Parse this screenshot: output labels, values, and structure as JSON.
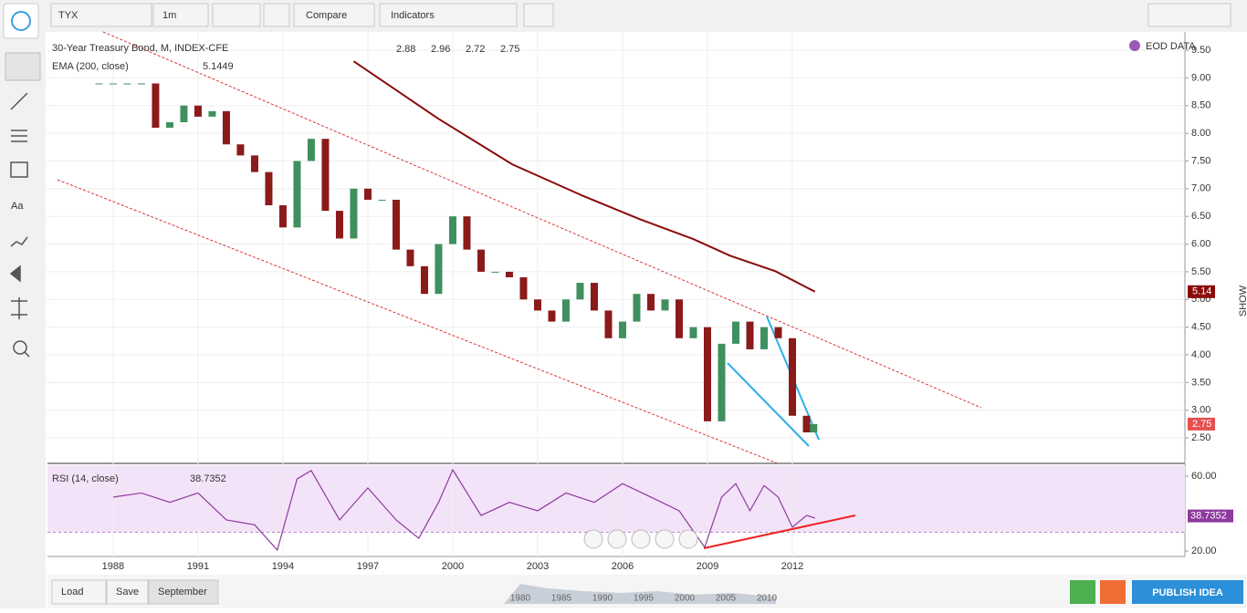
{
  "toolbar": {
    "symbol": "TYX",
    "interval": "1m",
    "compare": "Compare",
    "indicators": "Indicators"
  },
  "eod": "EOD DATA",
  "show": "SHOW",
  "chart_data": [
    {
      "type": "candlestick",
      "title": "30-Year Treasury Bond, M, INDEX-CFE",
      "ohlc": [
        2.88,
        2.96,
        2.72,
        2.75
      ],
      "color_up": "#3f8f5f",
      "color_down": "#8b1a1a",
      "x": [
        1987.5,
        1988,
        1988.5,
        1989,
        1989.5,
        1990,
        1990.5,
        1991,
        1991.5,
        1992,
        1992.5,
        1993,
        1993.5,
        1994,
        1994.5,
        1995,
        1995.5,
        1996,
        1996.5,
        1997,
        1997.5,
        1998,
        1998.5,
        1999,
        1999.5,
        2000,
        2000.5,
        2001,
        2001.5,
        2002,
        2002.5,
        2003,
        2003.5,
        2004,
        2004.5,
        2005,
        2005.5,
        2006,
        2006.5,
        2007,
        2007.5,
        2008,
        2008.5,
        2009,
        2009.5,
        2010,
        2010.5,
        2011,
        2011.5,
        2012,
        2012.5,
        2012.75
      ],
      "values": [
        8.9,
        8.9,
        8.9,
        8.9,
        8.1,
        8.2,
        8.5,
        8.3,
        8.4,
        7.8,
        7.6,
        7.3,
        6.7,
        6.3,
        7.5,
        7.9,
        6.6,
        6.1,
        7.0,
        6.8,
        6.8,
        5.9,
        5.6,
        5.1,
        6.0,
        6.5,
        5.9,
        5.5,
        5.5,
        5.4,
        5.0,
        4.8,
        4.6,
        5.0,
        5.3,
        4.8,
        4.3,
        4.6,
        5.1,
        4.8,
        5.0,
        4.3,
        4.5,
        2.8,
        4.2,
        4.6,
        4.1,
        4.5,
        4.3,
        2.9,
        2.6,
        2.75
      ],
      "ema": {
        "name": "EMA (200, close)",
        "value": 5.1449,
        "badge": 5.14,
        "color": "#8b0a0a",
        "x": [
          1996.5,
          1999.5,
          2002.1,
          2004.6,
          2006.6,
          2008.5,
          2009.8,
          2011.4,
          2012.8
        ],
        "values": [
          9.3,
          8.26,
          7.44,
          6.87,
          6.45,
          6.09,
          5.79,
          5.51,
          5.14
        ]
      },
      "xlim": [
        1985.68,
        2025.87
      ],
      "xticks": [
        1988,
        1991,
        1994,
        1997,
        2000,
        2003,
        2006,
        2009,
        2012
      ],
      "ylim": [
        2.04,
        9.83
      ],
      "yticks": [
        {
          "value": 2.5,
          "label": "2.50"
        },
        {
          "value": 3,
          "label": "3.00"
        },
        {
          "value": 3.5,
          "label": "3.50"
        },
        {
          "value": 4,
          "label": "4.00"
        },
        {
          "value": 4.5,
          "label": "4.50"
        },
        {
          "value": 5,
          "label": "5.00"
        },
        {
          "value": 5.5,
          "label": "5.50"
        },
        {
          "value": 6,
          "label": "6.00"
        },
        {
          "value": 6.5,
          "label": "6.50"
        },
        {
          "value": 7,
          "label": "7.00"
        },
        {
          "value": 7.5,
          "label": "7.50"
        },
        {
          "value": 8,
          "label": "8.00"
        },
        {
          "value": 8.5,
          "label": "8.50"
        },
        {
          "value": 9,
          "label": "9.00"
        },
        {
          "value": 9.5,
          "label": "9.50"
        }
      ],
      "grid": true
    },
    {
      "type": "line",
      "name": "RSI (14, close)",
      "value": 38.7352,
      "color": "#8e3a9e",
      "band": [
        30,
        70
      ],
      "x": [
        1988,
        1989,
        1990,
        1991,
        1992,
        1993,
        1993.8,
        1994.5,
        1995,
        1996,
        1997,
        1998,
        1998.8,
        1999.5,
        2000,
        2001,
        2002,
        2003,
        2004,
        2005,
        2006,
        2007,
        2008,
        2008.9,
        2009.5,
        2010,
        2010.5,
        2011,
        2011.5,
        2012,
        2012.5,
        2012.8
      ],
      "values": [
        48.8,
        51,
        46,
        51,
        36.6,
        34,
        20.5,
        58.5,
        63,
        36.6,
        53.7,
        36.6,
        26.8,
        46,
        63.4,
        39,
        46,
        41.5,
        51,
        46,
        56,
        48.8,
        41.5,
        22,
        48.8,
        56,
        41.5,
        55,
        48.8,
        32.7,
        39,
        37.6
      ],
      "xlim": [
        1985.68,
        2025.87
      ],
      "ylim": [
        18.05,
        65.85
      ],
      "yticks": [
        {
          "value": 20,
          "label": "20.00"
        },
        {
          "value": 60,
          "label": "60.00"
        }
      ]
    }
  ],
  "navigator": {
    "labels": [
      "1980",
      "1985",
      "1990",
      "1995",
      "2000",
      "2005",
      "2010"
    ]
  },
  "footer": {
    "load": "Load",
    "save": "Save",
    "range": "September",
    "publish": "PUBLISH IDEA"
  }
}
